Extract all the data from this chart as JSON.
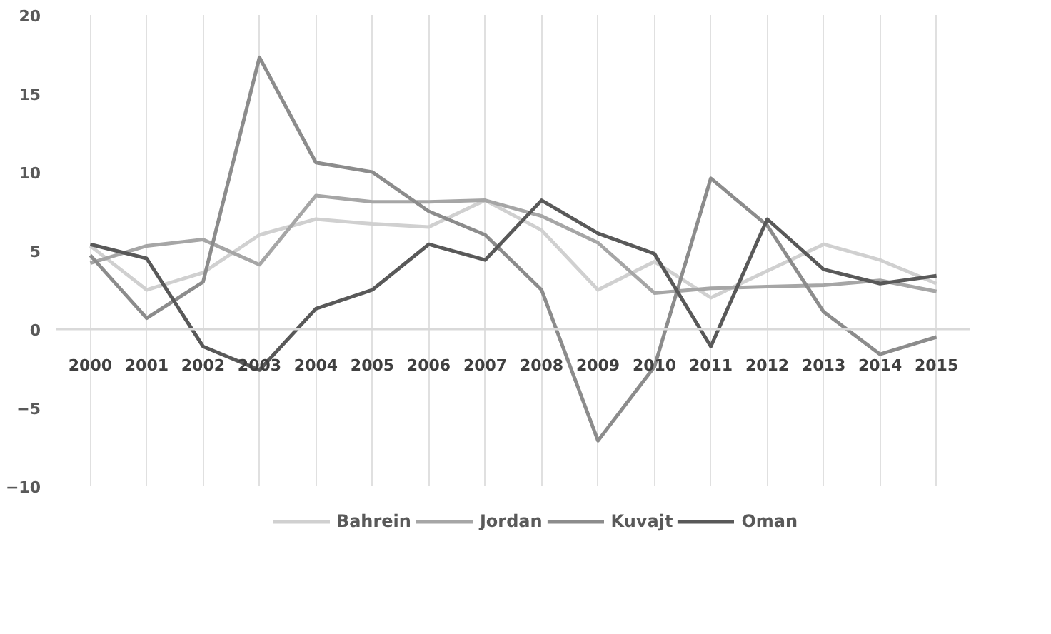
{
  "chart_data": {
    "type": "line",
    "categories": [
      "2000",
      "2001",
      "2002",
      "2003",
      "2004",
      "2005",
      "2006",
      "2007",
      "2008",
      "2009",
      "2010",
      "2011",
      "2012",
      "2013",
      "2014",
      "2015"
    ],
    "series": [
      {
        "name": "Bahrein",
        "color": "#d0d0d0",
        "values": [
          5.3,
          2.5,
          3.6,
          6.0,
          7.0,
          6.7,
          6.5,
          8.2,
          6.3,
          2.5,
          4.3,
          2.0,
          3.7,
          5.4,
          4.4,
          2.9
        ]
      },
      {
        "name": "Jordan",
        "color": "#a6a6a6",
        "values": [
          4.2,
          5.3,
          5.7,
          4.1,
          8.5,
          8.1,
          8.1,
          8.2,
          7.2,
          5.5,
          2.3,
          2.6,
          2.7,
          2.8,
          3.1,
          2.4
        ]
      },
      {
        "name": "Kuvajt",
        "color": "#8c8c8c",
        "values": [
          4.7,
          0.7,
          3.0,
          17.3,
          10.6,
          10.0,
          7.5,
          6.0,
          2.5,
          -7.1,
          -2.4,
          9.6,
          6.6,
          1.1,
          -1.6,
          -0.5
        ]
      },
      {
        "name": "Oman",
        "color": "#595959",
        "values": [
          5.4,
          4.5,
          -1.1,
          -2.6,
          1.3,
          2.5,
          5.4,
          4.4,
          8.2,
          6.1,
          4.8,
          -1.1,
          7.0,
          3.8,
          2.9,
          3.4
        ]
      }
    ],
    "ylim": [
      -10,
      20
    ],
    "yticks": [
      -10,
      -5,
      0,
      5,
      10,
      15,
      20
    ],
    "grid": "x",
    "legend": "bottom",
    "marker": "none",
    "line_style": "solid"
  }
}
